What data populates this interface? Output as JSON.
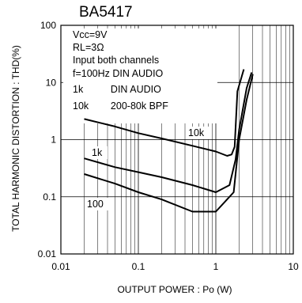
{
  "chart_data": {
    "type": "line",
    "title": "BA5417",
    "xlabel": "OUTPUT POWER : Po (W)",
    "ylabel": "TOTAL HARMONIC DISTORTION : THD(%)",
    "x_scale": "log",
    "y_scale": "log",
    "xlim": [
      0.01,
      10
    ],
    "ylim": [
      0.01,
      100
    ],
    "x_ticks": [
      "0.01",
      "0.1",
      "1",
      "10"
    ],
    "y_ticks": [
      "0.01",
      "0.1",
      "1",
      "10",
      "100"
    ],
    "grid": true,
    "conditions": [
      "Vcc=9V",
      "RL=3Ω",
      "Input both channels",
      "f=100Hz DIN AUDIO",
      "1k          DIN AUDIO",
      "10k        200-80k BPF"
    ],
    "series": [
      {
        "name": "10k",
        "color": "#000000",
        "x": [
          0.02,
          0.05,
          0.1,
          0.2,
          0.5,
          1.0,
          1.4,
          1.6,
          1.75,
          1.9,
          2.3
        ],
        "y": [
          2.3,
          1.7,
          1.3,
          1.05,
          0.78,
          0.62,
          0.52,
          0.55,
          0.75,
          7.0,
          17.0
        ]
      },
      {
        "name": "1k",
        "color": "#000000",
        "x": [
          0.02,
          0.05,
          0.1,
          0.2,
          0.5,
          1.0,
          1.5,
          1.8,
          2.0,
          2.5,
          2.9
        ],
        "y": [
          0.47,
          0.33,
          0.27,
          0.22,
          0.16,
          0.12,
          0.16,
          0.45,
          1.5,
          8.0,
          15.0
        ]
      },
      {
        "name": "100",
        "color": "#000000",
        "x": [
          0.02,
          0.05,
          0.1,
          0.2,
          0.5,
          1.0,
          1.7,
          2.0,
          2.5,
          3.0
        ],
        "y": [
          0.25,
          0.17,
          0.12,
          0.09,
          0.055,
          0.055,
          0.12,
          1.0,
          5.0,
          14.0
        ]
      }
    ]
  }
}
